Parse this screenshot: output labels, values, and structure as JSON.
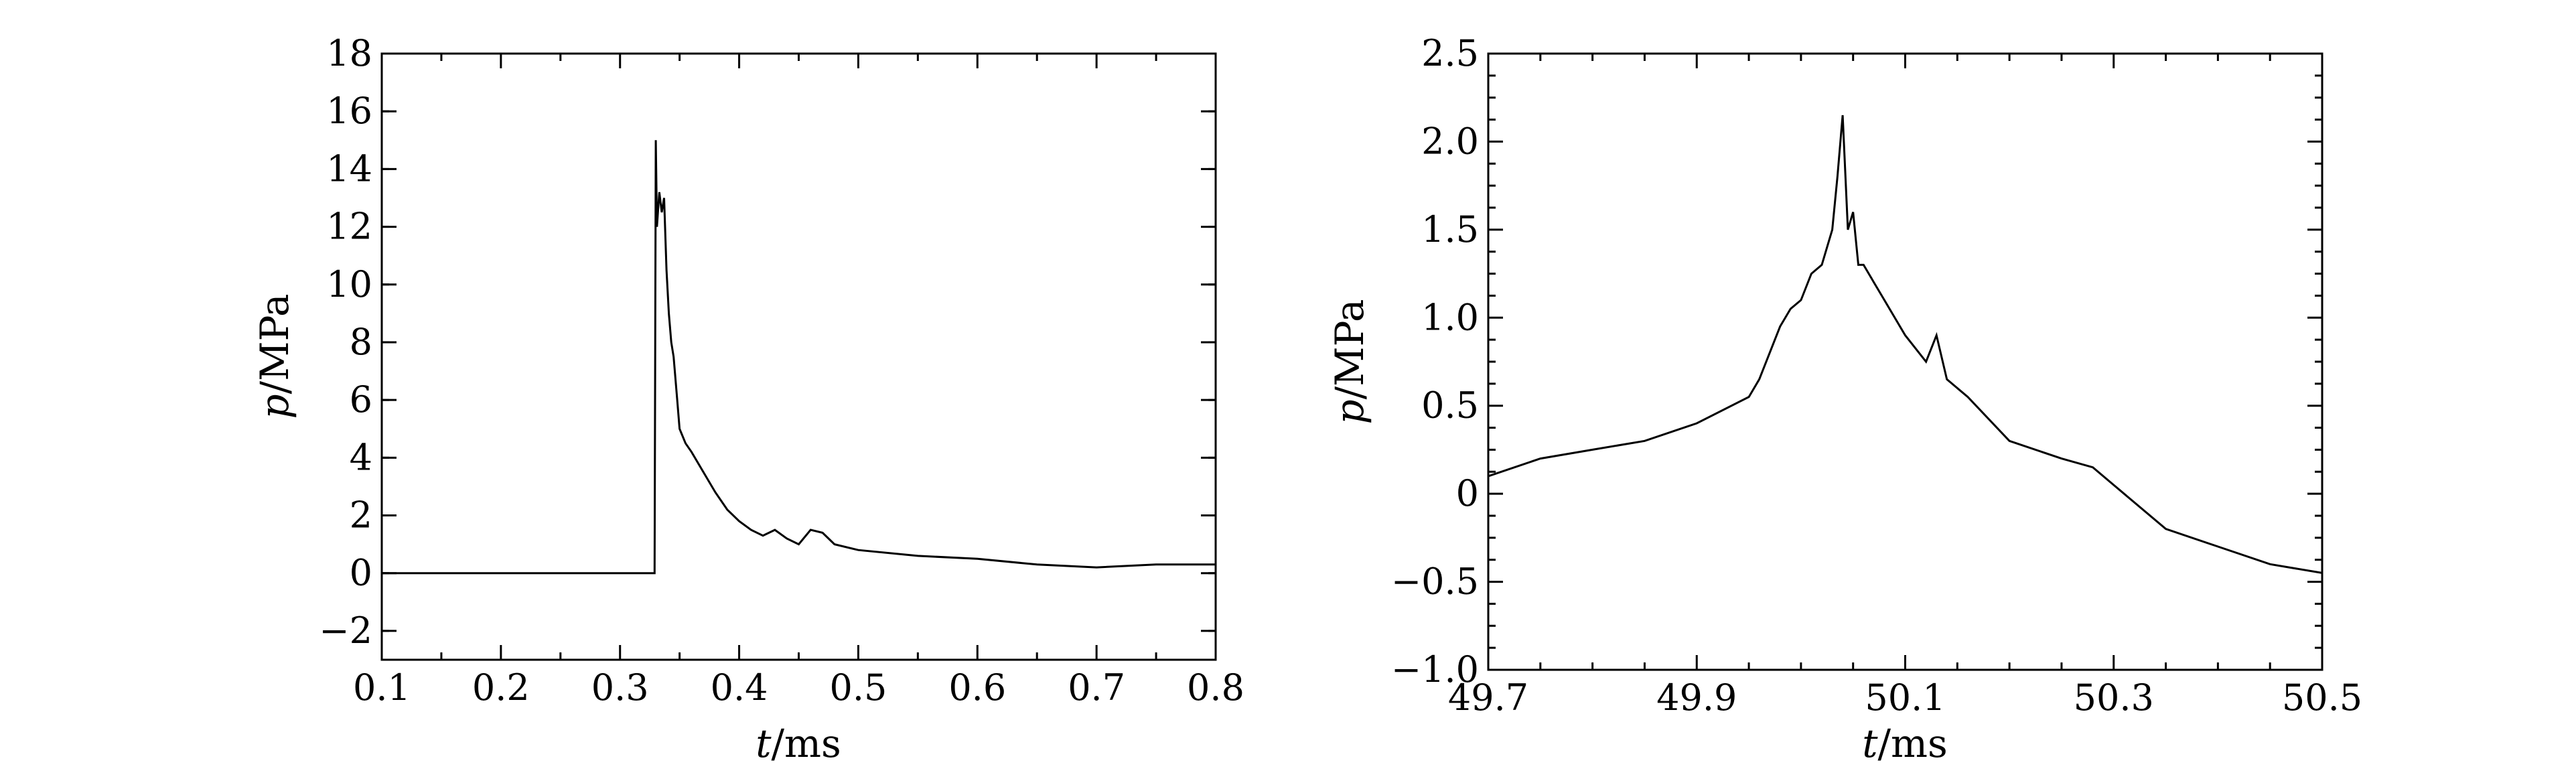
{
  "chart_data": [
    {
      "type": "line",
      "xlabel_var": "t",
      "xlabel_unit": "/ms",
      "ylabel_var": "p",
      "ylabel_unit": "/MPa",
      "xlim": [
        0.1,
        0.8
      ],
      "ylim": [
        -3,
        18
      ],
      "xticks": [
        0.1,
        0.2,
        0.3,
        0.4,
        0.5,
        0.6,
        0.7,
        0.8
      ],
      "xtick_labels": [
        "0.1",
        "0.2",
        "0.3",
        "0.4",
        "0.5",
        "0.6",
        "0.7",
        "0.8"
      ],
      "yticks": [
        -2,
        0,
        2,
        4,
        6,
        8,
        10,
        12,
        14,
        16,
        18
      ],
      "ytick_labels": [
        "−2",
        "0",
        "2",
        "4",
        "6",
        "8",
        "10",
        "12",
        "14",
        "16",
        "18"
      ],
      "grid": false,
      "series": [
        {
          "color": "#000000",
          "x": [
            0.1,
            0.15,
            0.2,
            0.25,
            0.3,
            0.329,
            0.33,
            0.331,
            0.333,
            0.335,
            0.337,
            0.339,
            0.341,
            0.343,
            0.345,
            0.348,
            0.35,
            0.355,
            0.36,
            0.37,
            0.38,
            0.39,
            0.4,
            0.41,
            0.42,
            0.43,
            0.44,
            0.45,
            0.46,
            0.47,
            0.48,
            0.5,
            0.55,
            0.6,
            0.65,
            0.7,
            0.75,
            0.8
          ],
          "y": [
            0,
            0,
            0,
            0,
            0,
            0,
            15.0,
            12.0,
            13.2,
            12.5,
            13.0,
            10.5,
            9.0,
            8.0,
            7.5,
            6.0,
            5.0,
            4.5,
            4.2,
            3.5,
            2.8,
            2.2,
            1.8,
            1.5,
            1.3,
            1.5,
            1.2,
            1.0,
            1.5,
            1.4,
            1.0,
            0.8,
            0.6,
            0.5,
            0.3,
            0.2,
            0.3,
            0.3
          ]
        }
      ]
    },
    {
      "type": "line",
      "xlabel_var": "t",
      "xlabel_unit": "/ms",
      "ylabel_var": "p",
      "ylabel_unit": "/MPa",
      "xlim": [
        49.7,
        50.5
      ],
      "ylim": [
        -1.0,
        2.5
      ],
      "xticks": [
        49.7,
        49.9,
        50.1,
        50.3,
        50.5
      ],
      "xtick_labels": [
        "49.7",
        "49.9",
        "50.1",
        "50.3",
        "50.5"
      ],
      "yticks": [
        -1.0,
        -0.5,
        0,
        0.5,
        1.0,
        1.5,
        2.0,
        2.5
      ],
      "ytick_labels": [
        "−1.0",
        "−0.5",
        "0",
        "0.5",
        "1.0",
        "1.5",
        "2.0",
        "2.5"
      ],
      "grid": false,
      "series": [
        {
          "color": "#000000",
          "x": [
            49.7,
            49.75,
            49.8,
            49.85,
            49.9,
            49.95,
            49.96,
            49.98,
            49.99,
            50.0,
            50.01,
            50.02,
            50.03,
            50.035,
            50.04,
            50.045,
            50.05,
            50.055,
            50.06,
            50.07,
            50.08,
            50.1,
            50.12,
            50.13,
            50.14,
            50.16,
            50.2,
            50.25,
            50.28,
            50.3,
            50.35,
            50.4,
            50.45,
            50.5
          ],
          "y": [
            0.1,
            0.2,
            0.25,
            0.3,
            0.4,
            0.55,
            0.65,
            0.95,
            1.05,
            1.1,
            1.25,
            1.3,
            1.5,
            1.8,
            2.15,
            1.5,
            1.6,
            1.3,
            1.3,
            1.2,
            1.1,
            0.9,
            0.75,
            0.9,
            0.65,
            0.55,
            0.3,
            0.2,
            0.15,
            0.05,
            -0.2,
            -0.3,
            -0.4,
            -0.45
          ]
        }
      ]
    }
  ]
}
